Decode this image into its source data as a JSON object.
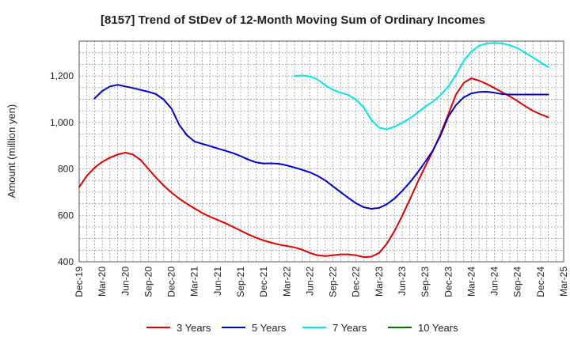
{
  "chart_data": {
    "type": "line",
    "title": "[8157]  Trend of StDev of 12-Month Moving Sum of Ordinary Incomes",
    "ylabel": "Amount (million yen)",
    "xlabel": "",
    "ylim": [
      400,
      1350
    ],
    "yticks": [
      400,
      600,
      800,
      1000,
      1200
    ],
    "ytick_labels": [
      "400",
      "600",
      "800",
      "1,000",
      "1,200"
    ],
    "xlim": [
      "2019-12",
      "2025-03"
    ],
    "xtick_labels": [
      "Dec-19",
      "Mar-20",
      "Jun-20",
      "Sep-20",
      "Dec-20",
      "Mar-21",
      "Jun-21",
      "Sep-21",
      "Dec-21",
      "Mar-22",
      "Jun-22",
      "Sep-22",
      "Dec-22",
      "Mar-23",
      "Jun-23",
      "Sep-23",
      "Dec-23",
      "Mar-24",
      "Jun-24",
      "Sep-24",
      "Dec-24",
      "Mar-25"
    ],
    "grid": true,
    "legend_position": "bottom",
    "series": [
      {
        "name": "3 Years",
        "color": "#dd0000",
        "start": "2019-12",
        "values": [
          722,
          770,
          805,
          830,
          848,
          862,
          870,
          862,
          838,
          800,
          762,
          728,
          698,
          672,
          650,
          630,
          610,
          594,
          580,
          566,
          550,
          534,
          518,
          504,
          492,
          482,
          474,
          468,
          462,
          452,
          438,
          428,
          425,
          428,
          432,
          432,
          428,
          420,
          422,
          438,
          478,
          532,
          598,
          668,
          742,
          810,
          878,
          952,
          1035,
          1120,
          1170,
          1190,
          1180,
          1165,
          1148,
          1130,
          1112,
          1092,
          1070,
          1050,
          1035,
          1022
        ]
      },
      {
        "name": "5 Years",
        "color": "#0000cc",
        "start": "2019-12",
        "values": [
          null,
          null,
          1103,
          1135,
          1155,
          1162,
          1155,
          1148,
          1140,
          1132,
          1122,
          1098,
          1060,
          990,
          945,
          918,
          908,
          898,
          888,
          878,
          868,
          855,
          840,
          828,
          823,
          824,
          822,
          815,
          806,
          796,
          785,
          770,
          750,
          725,
          700,
          675,
          652,
          635,
          628,
          632,
          648,
          672,
          705,
          742,
          784,
          830,
          880,
          945,
          1025,
          1075,
          1108,
          1125,
          1131,
          1132,
          1128,
          1122,
          1120,
          1120,
          1120,
          1120,
          1120,
          1120
        ]
      },
      {
        "name": "7 Years",
        "color": "#00e5e5",
        "start": "2019-12",
        "values": [
          null,
          null,
          null,
          null,
          null,
          null,
          null,
          null,
          null,
          null,
          null,
          null,
          null,
          null,
          null,
          null,
          null,
          null,
          null,
          null,
          null,
          null,
          null,
          null,
          null,
          null,
          null,
          null,
          1200,
          1202,
          1198,
          1185,
          1160,
          1140,
          1128,
          1118,
          1098,
          1065,
          1010,
          978,
          970,
          982,
          998,
          1018,
          1042,
          1068,
          1090,
          1118,
          1155,
          1205,
          1265,
          1305,
          1330,
          1340,
          1342,
          1340,
          1332,
          1320,
          1300,
          1280,
          1258,
          1238
        ]
      },
      {
        "name": "10 Years",
        "color": "#007700",
        "start": "2019-12",
        "values": []
      }
    ]
  }
}
